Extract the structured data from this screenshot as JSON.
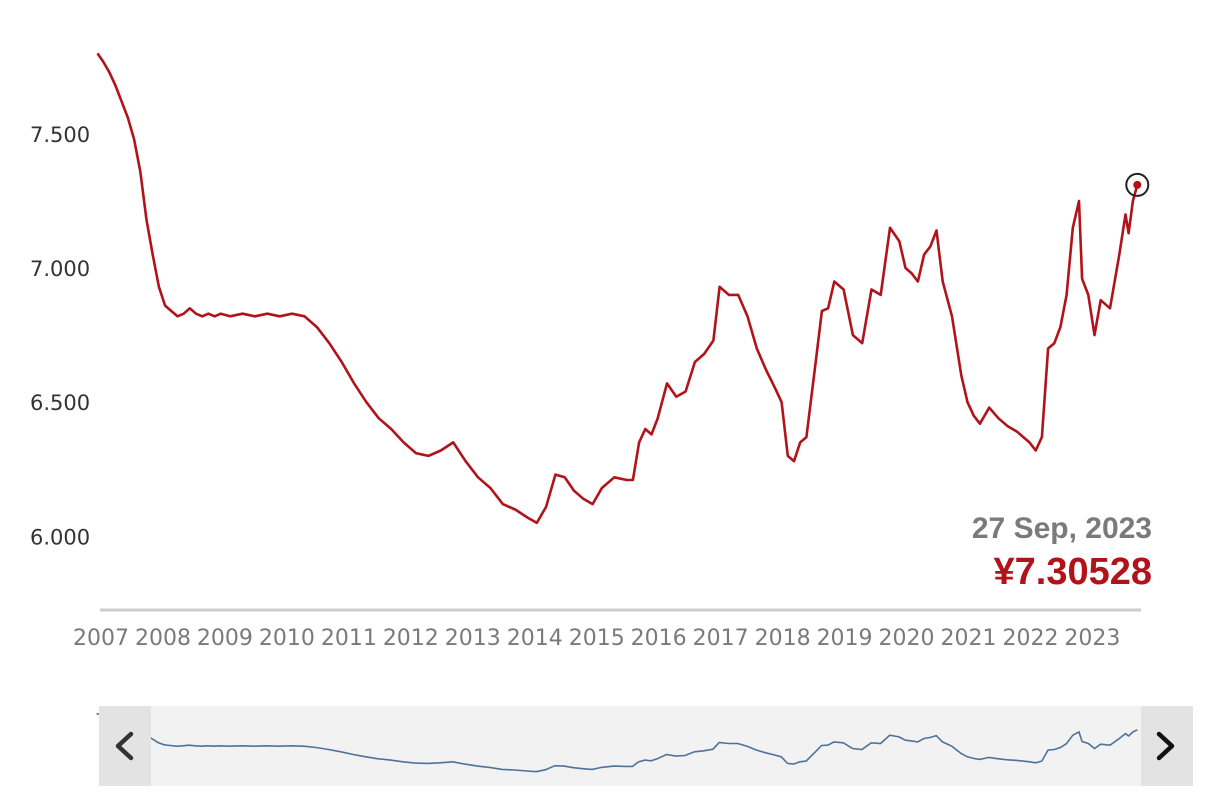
{
  "colors": {
    "line": "#b0141a",
    "navigator_line": "#4f729a",
    "navigator_background": "#f2f2f2",
    "navigator_button": "#e3e3e3",
    "axis_line": "#cccccc",
    "readout_value": "#b0141a",
    "readout_date": "#7a7a7a"
  },
  "icons": {
    "navigator_left": "chevron-left-icon",
    "navigator_right": "chevron-right-icon",
    "marker": "circle-marker-icon"
  },
  "readout": {
    "date": "27 Sep, 2023",
    "value": "¥7.30528"
  },
  "chart_data": {
    "type": "line",
    "title": "",
    "xlabel": "",
    "ylabel": "",
    "ylim": [
      5.8,
      7.85
    ],
    "xlim": [
      2007.0,
      2023.8
    ],
    "grid": false,
    "legend": "none",
    "y_ticks": [
      "6.000",
      "6.500",
      "7.000",
      "7.500"
    ],
    "y_tick_values": [
      6.0,
      6.5,
      7.0,
      7.5
    ],
    "x_ticks": [
      "2007",
      "2008",
      "2009",
      "2010",
      "2011",
      "2012",
      "2013",
      "2014",
      "2015",
      "2016",
      "2017",
      "2018",
      "2019",
      "2020",
      "2021",
      "2022",
      "2023"
    ],
    "x_tick_values": [
      2007,
      2008,
      2009,
      2010,
      2011,
      2012,
      2013,
      2014,
      2015,
      2016,
      2017,
      2018,
      2019,
      2020,
      2021,
      2022,
      2023
    ],
    "series": [
      {
        "x": [
          2006.96,
          2007.05,
          2007.15,
          2007.25,
          2007.35,
          2007.45,
          2007.55,
          2007.65,
          2007.75,
          2007.85,
          2007.95,
          2008.05,
          2008.15,
          2008.25,
          2008.35,
          2008.45,
          2008.55,
          2008.65,
          2008.75,
          2008.85,
          2008.95,
          2009.1,
          2009.3,
          2009.5,
          2009.7,
          2009.9,
          2010.1,
          2010.3,
          2010.5,
          2010.7,
          2010.9,
          2011.1,
          2011.3,
          2011.5,
          2011.7,
          2011.9,
          2012.1,
          2012.3,
          2012.5,
          2012.7,
          2012.9,
          2013.1,
          2013.3,
          2013.5,
          2013.7,
          2013.9,
          2014.05,
          2014.2,
          2014.35,
          2014.5,
          2014.65,
          2014.8,
          2014.95,
          2015.1,
          2015.3,
          2015.5,
          2015.6,
          2015.7,
          2015.8,
          2015.9,
          2016.0,
          2016.15,
          2016.3,
          2016.45,
          2016.6,
          2016.75,
          2016.9,
          2017.0,
          2017.15,
          2017.3,
          2017.45,
          2017.6,
          2017.75,
          2017.9,
          2018.0,
          2018.1,
          2018.2,
          2018.3,
          2018.4,
          2018.55,
          2018.65,
          2018.75,
          2018.85,
          2019.0,
          2019.15,
          2019.3,
          2019.45,
          2019.6,
          2019.75,
          2019.9,
          2020.0,
          2020.1,
          2020.2,
          2020.3,
          2020.4,
          2020.5,
          2020.6,
          2020.75,
          2020.9,
          2021.0,
          2021.1,
          2021.2,
          2021.35,
          2021.5,
          2021.65,
          2021.8,
          2021.9,
          2022.0,
          2022.1,
          2022.2,
          2022.3,
          2022.4,
          2022.5,
          2022.6,
          2022.7,
          2022.8,
          2022.85,
          2022.95,
          2023.05,
          2023.15,
          2023.3,
          2023.45,
          2023.55,
          2023.6,
          2023.67,
          2023.74
        ],
        "values": [
          7.8,
          7.77,
          7.73,
          7.68,
          7.62,
          7.56,
          7.48,
          7.36,
          7.18,
          7.05,
          6.93,
          6.86,
          6.84,
          6.82,
          6.83,
          6.85,
          6.83,
          6.82,
          6.83,
          6.82,
          6.83,
          6.82,
          6.83,
          6.82,
          6.83,
          6.82,
          6.83,
          6.82,
          6.78,
          6.72,
          6.65,
          6.57,
          6.5,
          6.44,
          6.4,
          6.35,
          6.31,
          6.3,
          6.32,
          6.35,
          6.28,
          6.22,
          6.18,
          6.12,
          6.1,
          6.07,
          6.05,
          6.11,
          6.23,
          6.22,
          6.17,
          6.14,
          6.12,
          6.18,
          6.22,
          6.21,
          6.21,
          6.35,
          6.4,
          6.38,
          6.44,
          6.57,
          6.52,
          6.54,
          6.65,
          6.68,
          6.73,
          6.93,
          6.9,
          6.9,
          6.82,
          6.7,
          6.62,
          6.55,
          6.5,
          6.3,
          6.28,
          6.35,
          6.37,
          6.65,
          6.84,
          6.85,
          6.95,
          6.92,
          6.75,
          6.72,
          6.92,
          6.9,
          7.15,
          7.1,
          7.0,
          6.98,
          6.95,
          7.05,
          7.08,
          7.14,
          6.95,
          6.82,
          6.6,
          6.5,
          6.45,
          6.42,
          6.48,
          6.44,
          6.41,
          6.39,
          6.37,
          6.35,
          6.32,
          6.37,
          6.7,
          6.72,
          6.78,
          6.9,
          7.15,
          7.25,
          6.96,
          6.9,
          6.75,
          6.88,
          6.85,
          7.05,
          7.2,
          7.13,
          7.25,
          7.31
        ]
      }
    ],
    "annotations": [
      "27 Sep, 2023",
      "¥7.30528"
    ]
  }
}
